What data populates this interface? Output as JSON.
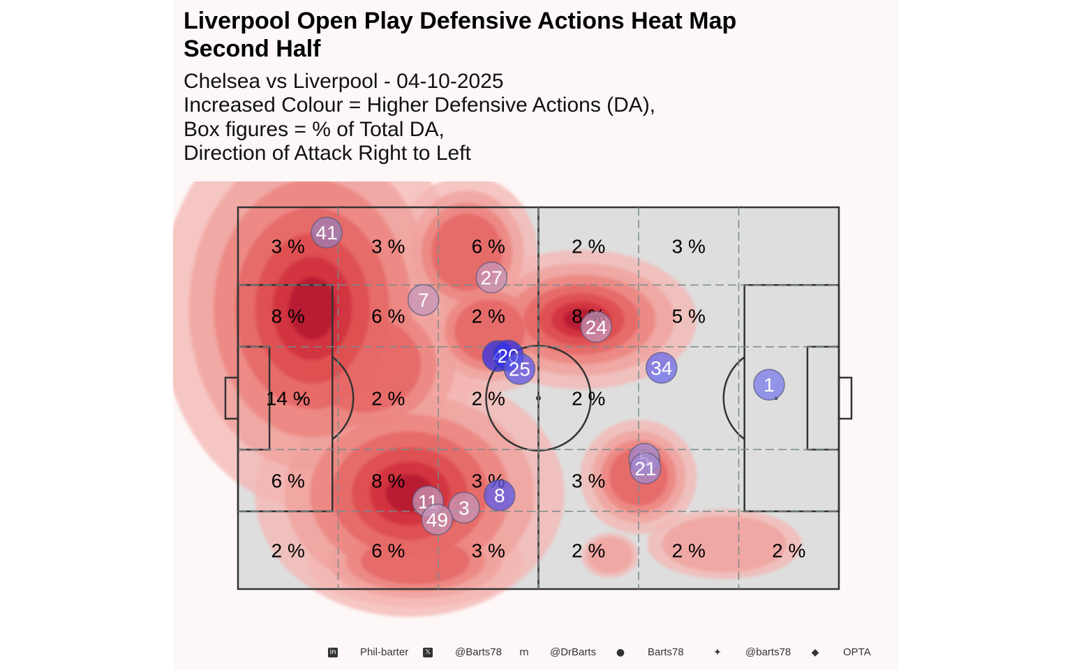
{
  "header": {
    "title_line1": "Liverpool  Open Play Defensive Actions Heat Map",
    "title_line2": "Second Half",
    "subtitle_lines": [
      "Chelsea vs Liverpool - 04-10-2025",
      "Increased Colour = Higher Defensive Actions (DA),",
      "Box figures = % of Total DA,",
      "Direction of Attack Right to Left"
    ]
  },
  "chart_data": {
    "type": "heatmap",
    "title": "Liverpool  Open Play Defensive Actions Heat Map Second Half",
    "pitch": {
      "length": 105,
      "width": 68,
      "columns": 6,
      "rows": 5
    },
    "zones": [
      {
        "col": 0,
        "row": 0,
        "label": "3 %"
      },
      {
        "col": 1,
        "row": 0,
        "label": "3 %"
      },
      {
        "col": 2,
        "row": 0,
        "label": "6 %"
      },
      {
        "col": 3,
        "row": 0,
        "label": "2 %"
      },
      {
        "col": 4,
        "row": 0,
        "label": "3 %"
      },
      {
        "col": 0,
        "row": 1,
        "label": "8 %"
      },
      {
        "col": 1,
        "row": 1,
        "label": "6 %"
      },
      {
        "col": 2,
        "row": 1,
        "label": "2 %"
      },
      {
        "col": 3,
        "row": 1,
        "label": "8 %"
      },
      {
        "col": 4,
        "row": 1,
        "label": "5 %"
      },
      {
        "col": 0,
        "row": 2,
        "label": "14 %"
      },
      {
        "col": 1,
        "row": 2,
        "label": "2 %"
      },
      {
        "col": 2,
        "row": 2,
        "label": "2 %"
      },
      {
        "col": 3,
        "row": 2,
        "label": "2 %"
      },
      {
        "col": 0,
        "row": 3,
        "label": "6 %"
      },
      {
        "col": 1,
        "row": 3,
        "label": "8 %"
      },
      {
        "col": 2,
        "row": 3,
        "label": "3 %"
      },
      {
        "col": 3,
        "row": 3,
        "label": "3 %"
      },
      {
        "col": 0,
        "row": 4,
        "label": "2 %"
      },
      {
        "col": 1,
        "row": 4,
        "label": "6 %"
      },
      {
        "col": 2,
        "row": 4,
        "label": "3 %"
      },
      {
        "col": 3,
        "row": 4,
        "label": "2 %"
      },
      {
        "col": 4,
        "row": 4,
        "label": "2 %"
      },
      {
        "col": 5,
        "row": 4,
        "label": "2 %"
      }
    ],
    "hotspots": [
      {
        "x": 8.5,
        "y": 50.5,
        "intensity": 1.0
      },
      {
        "x": 31,
        "y": 16.5,
        "intensity": 0.9
      },
      {
        "x": 58,
        "y": 48,
        "intensity": 0.8
      },
      {
        "x": 10,
        "y": 55.5,
        "intensity": 0.7
      },
      {
        "x": 40,
        "y": 65,
        "intensity": 0.6
      },
      {
        "x": 71,
        "y": 18,
        "intensity": 0.4
      }
    ],
    "players": [
      {
        "number": "41",
        "x": 15.5,
        "y": 63.5,
        "color": "#9b7fb8"
      },
      {
        "number": "27",
        "x": 44.3,
        "y": 55.5,
        "color": "#c497b9"
      },
      {
        "number": "7",
        "x": 32.4,
        "y": 51.5,
        "color": "#c497b9"
      },
      {
        "number": "4",
        "x": 45.4,
        "y": 41.5,
        "color": "#3030e8"
      },
      {
        "number": "20",
        "x": 47.2,
        "y": 41.6,
        "color": "#3030e8"
      },
      {
        "number": "25",
        "x": 49.2,
        "y": 39.2,
        "color": "#5a5ae8"
      },
      {
        "number": "24",
        "x": 62.6,
        "y": 46.7,
        "color": "#c497b9"
      },
      {
        "number": "34",
        "x": 74,
        "y": 39.4,
        "color": "#6b6bea"
      },
      {
        "number": "1",
        "x": 92.8,
        "y": 36.4,
        "color": "#7a7aea"
      },
      {
        "number": "5",
        "x": 71,
        "y": 23.2,
        "color": "#a08ad0"
      },
      {
        "number": "21",
        "x": 71.2,
        "y": 21.5,
        "color": "#a08ad0"
      },
      {
        "number": "8",
        "x": 45.7,
        "y": 16.7,
        "color": "#5a5ae8"
      },
      {
        "number": "11",
        "x": 33.2,
        "y": 15.6,
        "color": "#c497b9"
      },
      {
        "number": "3",
        "x": 39.5,
        "y": 14.5,
        "color": "#c497b9"
      },
      {
        "number": "49",
        "x": 34.8,
        "y": 12.4,
        "color": "#c497b9"
      }
    ],
    "colors": {
      "heat_low": "#f6c4c1",
      "heat_high": "#b40f2a",
      "pitch": "#dedede",
      "lines": "#333333",
      "grid": "#7a8a8a"
    }
  },
  "footer": {
    "items": [
      {
        "icon": "linkedin-icon",
        "glyph": "in",
        "text": "Phil-barter"
      },
      {
        "icon": "x-icon",
        "glyph": "𝕏",
        "text": "@Barts78"
      },
      {
        "icon": "mastodon-icon",
        "glyph": "m",
        "text": "@DrBarts"
      },
      {
        "icon": "github-icon",
        "glyph": "●",
        "text": "Barts78"
      },
      {
        "icon": "bluesky-icon",
        "glyph": "✦",
        "text": "@barts78"
      },
      {
        "icon": "dropbox-icon",
        "glyph": "◆",
        "text": "OPTA"
      }
    ]
  }
}
